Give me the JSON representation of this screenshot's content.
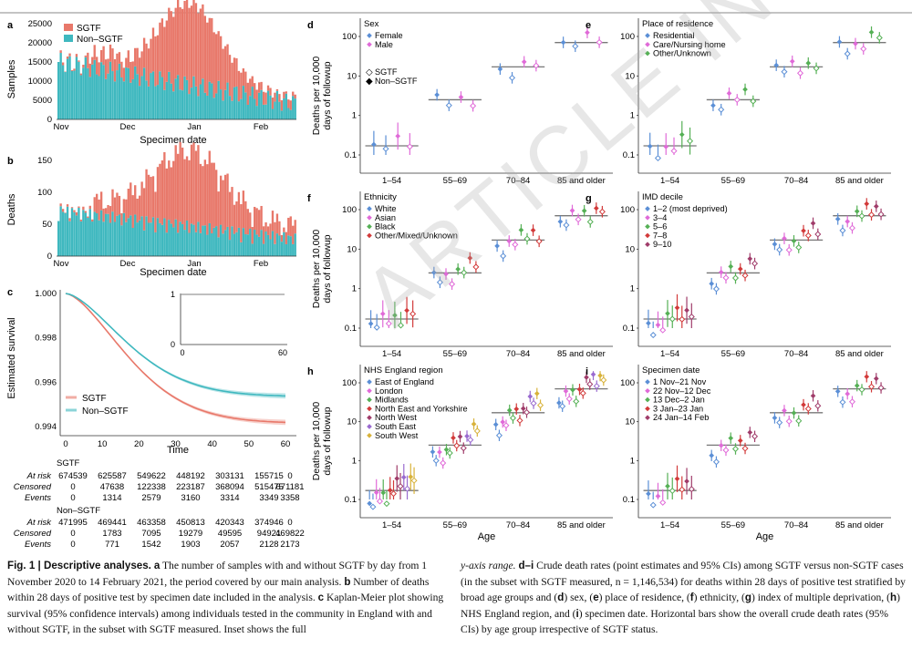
{
  "watermark": "ARTICLE IN REVIEW",
  "colors": {
    "sgtf": "#e8786a",
    "nonsgtf": "#3fb8bf",
    "female": "#5b8fd6",
    "male": "#e06ad8",
    "grey": "#777777"
  },
  "panel_a": {
    "label": "a",
    "ylabel": "Samples",
    "xlabel": "Specimen date",
    "legend": [
      "SGTF",
      "Non–SGTF"
    ],
    "yticks": [
      "25000",
      "20000",
      "15000",
      "10000",
      "5000",
      "0"
    ],
    "xticks": [
      "Nov",
      "Dec",
      "Jan",
      "Feb"
    ]
  },
  "panel_b": {
    "label": "b",
    "ylabel": "Deaths",
    "xlabel": "Specimen date",
    "yticks": [
      "150",
      "100",
      "50",
      "0"
    ],
    "xticks": [
      "Nov",
      "Dec",
      "Jan",
      "Feb"
    ]
  },
  "panel_c": {
    "label": "c",
    "ylabel": "Estimated survival",
    "xlabel": "Time",
    "yticks": [
      "1.000",
      "0.998",
      "0.996",
      "0.994"
    ],
    "xticks": [
      "0",
      "10",
      "20",
      "30",
      "40",
      "50",
      "60"
    ],
    "inset_yticks": [
      "1",
      "0"
    ],
    "inset_xticks": [
      "0",
      "60"
    ],
    "legend": [
      "SGTF",
      "Non–SGTF"
    ]
  },
  "risk_table": {
    "sgtf_title": "SGTF",
    "nonsgtf_title": "Non–SGTF",
    "rows": [
      {
        "label": "At risk",
        "sgtf": [
          "674539",
          "625587",
          "549622",
          "448192",
          "303131",
          "155715",
          "0"
        ],
        "non": [
          "471995",
          "469441",
          "463358",
          "450813",
          "420343",
          "374946",
          "0"
        ]
      },
      {
        "label": "Censored",
        "sgtf": [
          "0",
          "47638",
          "122338",
          "223187",
          "368094",
          "515475",
          "671181"
        ],
        "non": [
          "0",
          "1783",
          "7095",
          "19279",
          "49595",
          "94921",
          "469822"
        ]
      },
      {
        "label": "Events",
        "sgtf": [
          "0",
          "1314",
          "2579",
          "3160",
          "3314",
          "3349",
          "3358"
        ],
        "non": [
          "0",
          "771",
          "1542",
          "1903",
          "2057",
          "2128",
          "2173"
        ]
      }
    ]
  },
  "forest": {
    "ylabel": "Deaths per 10,000\ndays of followup",
    "ytick_labels": [
      "100",
      "10",
      "1",
      "0.1"
    ],
    "age_groups": [
      "1–54",
      "55–69",
      "70–84",
      "85 and older"
    ],
    "xlabel": "Age",
    "sgtf_shape_labels": [
      "SGTF",
      "Non–SGTF"
    ],
    "panels": [
      {
        "label": "d",
        "title": "Sex",
        "items": [
          "Female",
          "Male"
        ],
        "colors": [
          "#5b8fd6",
          "#e06ad8"
        ]
      },
      {
        "label": "e",
        "title": "Place of residence",
        "items": [
          "Residential",
          "Care/Nursing home",
          "Other/Unknown"
        ],
        "colors": [
          "#5b8fd6",
          "#e06ad8",
          "#55b055"
        ]
      },
      {
        "label": "f",
        "title": "Ethnicity",
        "items": [
          "White",
          "Asian",
          "Black",
          "Other/Mixed/Unknown"
        ],
        "colors": [
          "#5b8fd6",
          "#e06ad8",
          "#55b055",
          "#d23a3a"
        ]
      },
      {
        "label": "g",
        "title": "IMD decile",
        "items": [
          "1–2 (most deprived)",
          "3–4",
          "5–6",
          "7–8",
          "9–10"
        ],
        "colors": [
          "#5b8fd6",
          "#e06ad8",
          "#55b055",
          "#d23a3a",
          "#a03c6a"
        ]
      },
      {
        "label": "h",
        "title": "NHS England region",
        "items": [
          "East of England",
          "London",
          "Midlands",
          "North East and Yorkshire",
          "North West",
          "South East",
          "South West"
        ],
        "colors": [
          "#5b8fd6",
          "#e06ad8",
          "#55b055",
          "#d23a3a",
          "#a03c6a",
          "#9a6bd0",
          "#d8b23a"
        ]
      },
      {
        "label": "i",
        "title": "Specimen date",
        "items": [
          "1 Nov–21 Nov",
          "22 Nov–12 Dec",
          "13 Dec–2 Jan",
          "3 Jan–23 Jan",
          "24 Jan–14 Feb"
        ],
        "colors": [
          "#5b8fd6",
          "#e06ad8",
          "#55b055",
          "#d23a3a",
          "#a03c6a"
        ]
      }
    ]
  },
  "caption_left": {
    "fig": "Fig. 1 | Descriptive analyses.",
    "a_lbl": "a",
    "a_text": " The number of samples with and without SGTF by day from 1 November 2020 to 14 February 2021, the period covered by our main analysis. ",
    "b_lbl": "b",
    "b_text": " Number of deaths within 28 days of positive test by specimen date included in the analysis. ",
    "c_lbl": "c",
    "c_text": " Kaplan-Meier plot showing survival (95% confidence intervals) among individuals tested in the community in England with and without SGTF, in the subset with SGTF measured. Inset shows the full"
  },
  "caption_right": {
    "t1": "y-axis range. ",
    "di_lbl": "d–i",
    "t2": " Crude death rates (point estimates and 95% CIs) among SGTF versus non-SGTF cases (in the subset with SGTF measured, n = 1,146,534) for deaths within 28 days of positive test stratified by broad age groups and (",
    "d": "d",
    "t3": ") sex, (",
    "e": "e",
    "t4": ") place of residence, (",
    "f": "f",
    "t5": ") ethnicity, (",
    "g": "g",
    "t6": ") index of multiple deprivation, (",
    "h": "h",
    "t7": ") NHS England region, and (",
    "i": "i",
    "t8": ") specimen date. Horizontal bars show the overall crude death rates (95% CIs) by age group irrespective of SGTF status."
  }
}
